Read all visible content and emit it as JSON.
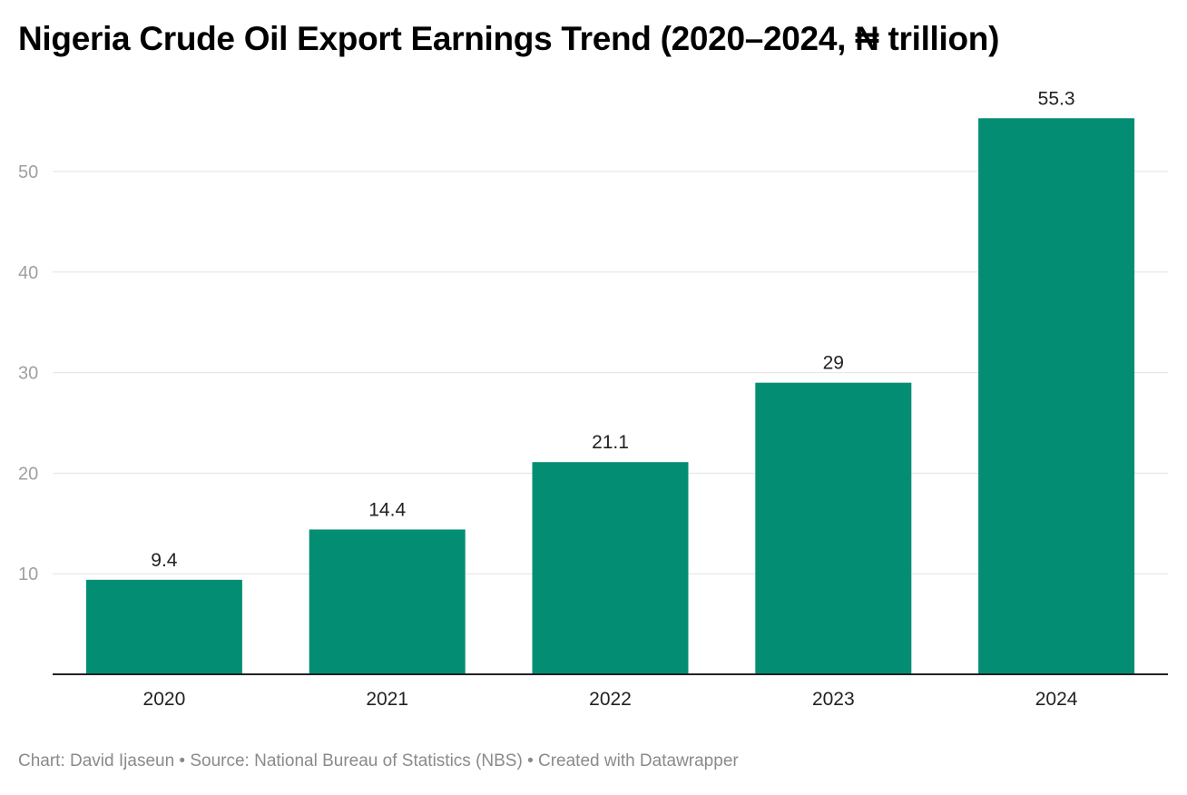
{
  "chart_data": {
    "type": "bar",
    "title": "Nigeria Crude Oil Export Earnings Trend (2020–2024, ₦ trillion)",
    "categories": [
      "2020",
      "2021",
      "2022",
      "2023",
      "2024"
    ],
    "values": [
      9.4,
      14.4,
      21.1,
      29,
      55.3
    ],
    "data_labels": [
      "9.4",
      "14.4",
      "21.1",
      "29",
      "55.3"
    ],
    "yticks": [
      10,
      20,
      30,
      40,
      50
    ],
    "ylim": [
      0,
      55.3
    ],
    "xlabel": "",
    "ylabel": "",
    "grid": true,
    "bar_color": "#038e74"
  },
  "footer": {
    "text": "Chart: David Ijaseun • Source: National Bureau of Statistics (NBS) • Created with Datawrapper"
  }
}
